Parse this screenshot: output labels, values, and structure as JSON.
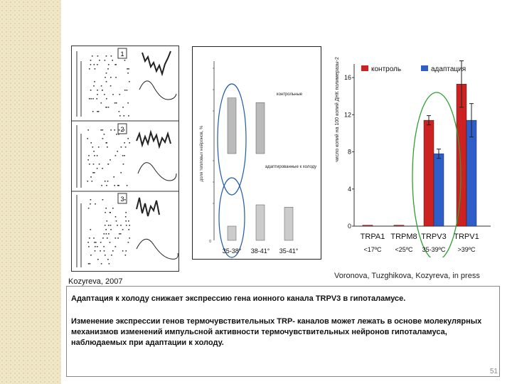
{
  "figure_left": {
    "panel_labels": [
      "1",
      "2",
      "3"
    ]
  },
  "figure_middle": {
    "y_axis_label": "доля тепловых нейронов, %",
    "label_control": "контрольные",
    "label_adapted": "адаптированные к холоду",
    "chart_data": {
      "type": "bar",
      "categories": [
        "35-38°",
        "38-41°",
        "35-41°"
      ],
      "series": [
        {
          "name": "контрольные",
          "values": [
            47,
            43,
            0
          ]
        },
        {
          "name": "адаптированные к холоду",
          "values": [
            12,
            30,
            28
          ]
        }
      ],
      "ylim": [
        0,
        60
      ],
      "y_ticks": [
        "0",
        "",
        "",
        "",
        ""
      ]
    }
  },
  "chart_right": {
    "y_axis_label": "число копий на 100 копий ДНК полимеразы-2",
    "legend": {
      "control": "контроль",
      "adapted": "адаптация"
    },
    "category_ranges": [
      "<17ºC",
      "<25ºC",
      "35-39ºC",
      ">39ºC"
    ],
    "chart_data": {
      "type": "bar",
      "categories": [
        "TRPA1",
        "TRPM8",
        "TRPV3",
        "TRPV1"
      ],
      "series": [
        {
          "name": "контроль",
          "values": [
            0.1,
            0.1,
            11.4,
            15.3
          ],
          "errors": [
            0,
            0,
            0.5,
            2.5
          ]
        },
        {
          "name": "адаптация",
          "values": [
            0,
            0,
            7.8,
            11.4
          ],
          "errors": [
            0,
            0,
            0.5,
            1.8
          ]
        }
      ],
      "ylim": [
        0,
        17
      ],
      "y_ticks": [
        0,
        4,
        8,
        12,
        16
      ],
      "colors": {
        "control": "#cc2222",
        "adapted": "#2f5ec8"
      }
    }
  },
  "credits": {
    "left": "Kozyreva, 2007",
    "right": "Voronova, Tuzghikova, Kozyreva, in press"
  },
  "text": {
    "paragraph1": "Адаптация к холоду снижает экспрессию гена ионного канала TRPV3 в гипоталамусе.",
    "paragraph2": "Изменение экспрессии генов термочувствительных TRP- каналов может лежать в основе молекулярных механизмов изменений импульсной активности термочувствительных нейронов гипоталамуса, наблюдаемых при адаптации к холоду."
  },
  "page_number": "51"
}
